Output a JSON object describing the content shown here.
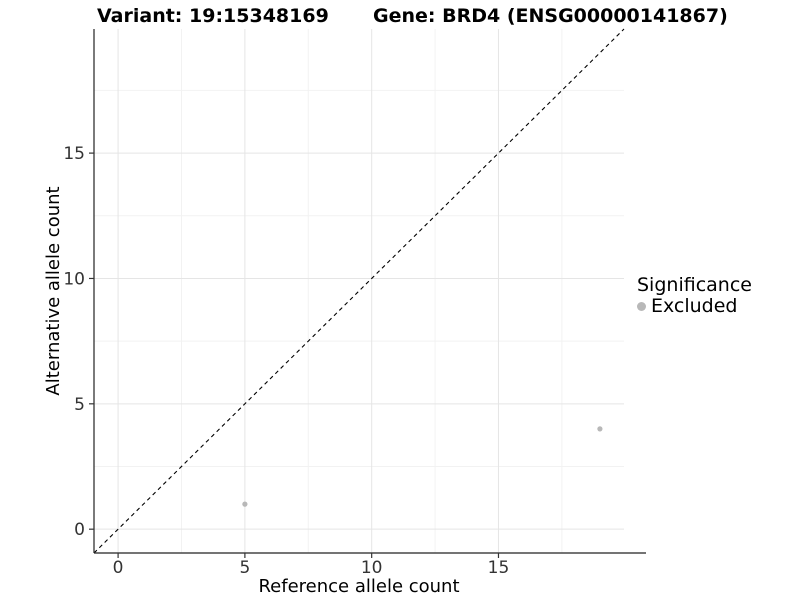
{
  "titles": {
    "variant": "Variant: 19:15348169",
    "gene": "Gene: BRD4 (ENSG00000141867)"
  },
  "legend": {
    "title": "Significance",
    "items": [
      {
        "label": "Excluded",
        "color": "#b8b8b8"
      }
    ]
  },
  "chart_data": {
    "type": "scatter",
    "title": "Variant: 19:15348169 — Gene: BRD4 (ENSG00000141867)",
    "xlabel": "Reference allele count",
    "ylabel": "Alternative allele count",
    "xlim": [
      -0.95,
      19.95
    ],
    "ylim": [
      -0.95,
      19.95
    ],
    "x_ticks": [
      0,
      5,
      10,
      15
    ],
    "y_ticks": [
      0,
      5,
      10,
      15
    ],
    "x_minor_ticks": [
      2.5,
      7.5,
      12.5,
      17.5
    ],
    "y_minor_ticks": [
      2.5,
      7.5,
      12.5,
      17.5
    ],
    "grid": true,
    "legend_position": "right",
    "series": [
      {
        "name": "Excluded",
        "color": "#b8b8b8",
        "points": [
          [
            5,
            1
          ],
          [
            19,
            4
          ]
        ]
      }
    ],
    "reference_line": {
      "slope": 1,
      "intercept": 0,
      "style": "dashed",
      "color": "#000000"
    }
  },
  "colors": {
    "background": "#ffffff",
    "grid_major": "#e5e5e5",
    "grid_minor": "#f2f2f2",
    "axis_line": "#222222",
    "tick_mark": "#333333",
    "tick_label": "#333333",
    "point": "#b8b8b8"
  }
}
